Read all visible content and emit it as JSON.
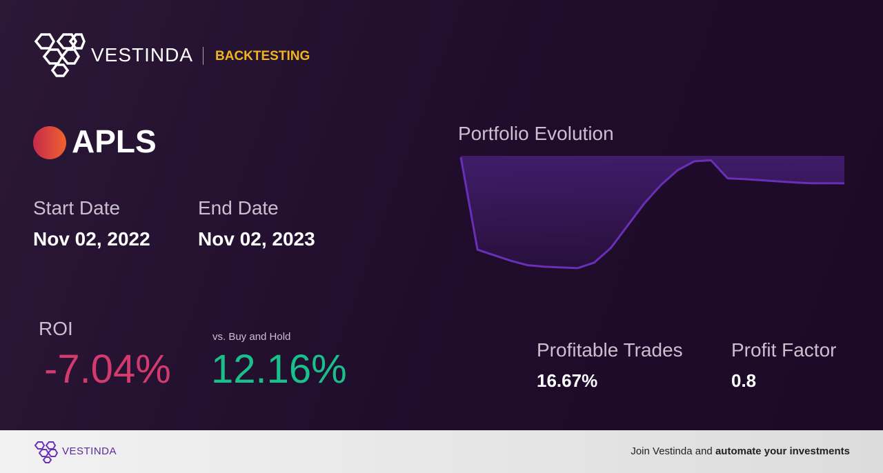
{
  "header": {
    "brand": "VESTINDA",
    "section": "BACKTESTING"
  },
  "ticker": "APLS",
  "start_date": {
    "label": "Start Date",
    "value": "Nov 02, 2022"
  },
  "end_date": {
    "label": "End Date",
    "value": "Nov 02, 2023"
  },
  "portfolio": {
    "type": "line",
    "title": "Portfolio Evolution",
    "color": "#6a2fb8",
    "values": [
      100,
      75,
      73.5,
      72,
      70.8,
      70.4,
      70.2,
      70.0,
      71.5,
      75.5,
      81.5,
      87.5,
      92.5,
      96.5,
      98.9,
      99.2,
      94.3,
      94.1,
      93.8,
      93.5,
      93.2,
      93.0,
      92.97,
      92.96
    ],
    "ylim": [
      69.8,
      100.4
    ]
  },
  "roi": {
    "label": "ROI",
    "value": "-7.04%"
  },
  "buy_hold": {
    "label": "vs. Buy and Hold",
    "value": "12.16%"
  },
  "profitable_trades": {
    "label": "Profitable Trades",
    "value": "16.67%"
  },
  "profit_factor": {
    "label": "Profit Factor",
    "value": "0.8"
  },
  "footer": {
    "brand": "VESTINDA",
    "cta_prefix": "Join Vestinda and",
    "cta_bold": "automate your investments"
  }
}
